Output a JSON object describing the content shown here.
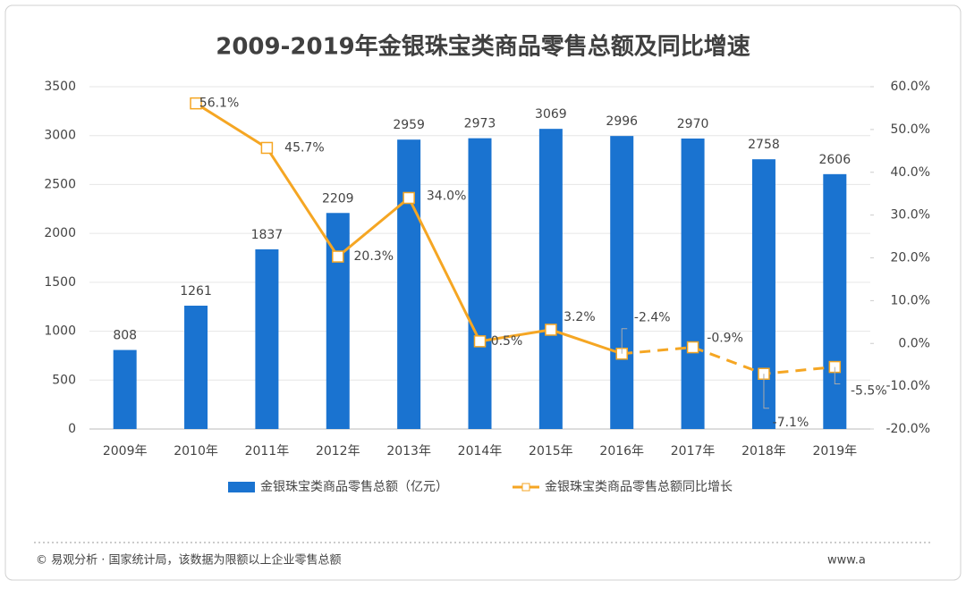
{
  "chart_data": {
    "type": "bar_line",
    "title": "2009-2019年金银珠宝类商品零售总额及同比增速",
    "categories": [
      "2009年",
      "2010年",
      "2011年",
      "2012年",
      "2013年",
      "2014年",
      "2015年",
      "2016年",
      "2017年",
      "2018年",
      "2019年"
    ],
    "series": [
      {
        "name": "金银珠宝类商品零售总额（亿元）",
        "type": "bar",
        "color": "#1a73d0",
        "values": [
          808,
          1261,
          1837,
          2209,
          2959,
          2973,
          3069,
          2996,
          2970,
          2758,
          2606
        ]
      },
      {
        "name": "金银珠宝类商品零售总额同比增长",
        "type": "line",
        "axis": "y2",
        "color": "#f5a623",
        "dashed_from": 7,
        "values": [
          null,
          56.1,
          45.7,
          20.3,
          34.0,
          0.5,
          3.2,
          -2.4,
          -0.9,
          -7.1,
          -5.5
        ],
        "value_labels": [
          null,
          "56.1%",
          "45.7%",
          "20.3%",
          "34.0%",
          "0.5%",
          "3.2%",
          "-2.4%",
          "-0.9%",
          "-7.1%",
          "-5.5%"
        ]
      }
    ],
    "ylim": [
      0,
      3500
    ],
    "yticks": [
      0,
      500,
      1000,
      1500,
      2000,
      2500,
      3000,
      3500
    ],
    "y2lim": [
      -20,
      60
    ],
    "y2ticks": [
      {
        "value": -20,
        "label": "-20.0%"
      },
      {
        "value": -10,
        "label": "-10.0%"
      },
      {
        "value": 0,
        "label": "0.0%"
      },
      {
        "value": 10,
        "label": "10.0%"
      },
      {
        "value": 20,
        "label": "20.0%"
      },
      {
        "value": 30,
        "label": "30.0%"
      },
      {
        "value": 40,
        "label": "40.0%"
      },
      {
        "value": 50,
        "label": "50.0%"
      },
      {
        "value": 60,
        "label": "60.0%"
      }
    ],
    "grid": true,
    "legend": "bottom",
    "source": "© 易观分析 · 国家统计局，该数据为限额以上企业零售总额",
    "source_url": "www.a"
  }
}
